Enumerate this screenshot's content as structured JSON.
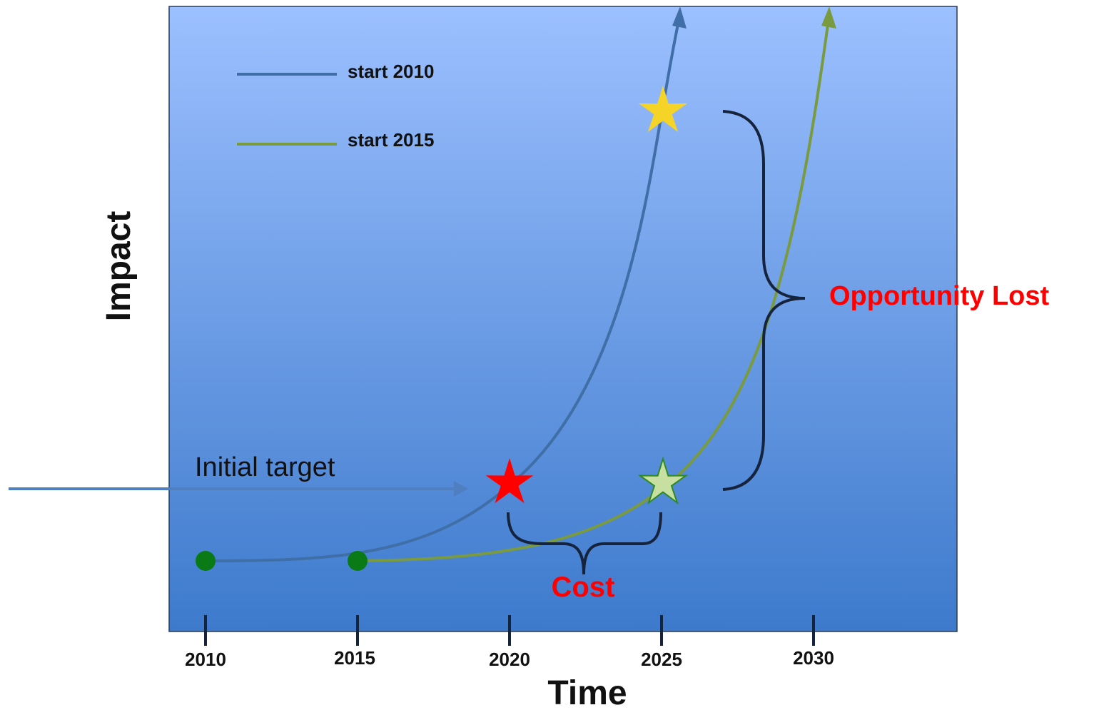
{
  "y_axis_label": "Impact",
  "x_axis_label": "Time",
  "ticks": [
    "2010",
    "2015",
    "2020",
    "2025",
    "2030"
  ],
  "legend": [
    {
      "label": "start 2010",
      "color": "#3f6fa6"
    },
    {
      "label": "start 2015",
      "color": "#7a9a3f"
    }
  ],
  "annotations": {
    "initial_target": "Initial target",
    "opportunity_lost": "Opportunity Lost",
    "cost": "Cost"
  },
  "colors": {
    "panel_top": "#9cc0ff",
    "panel_bottom": "#3d7acc",
    "red": "#ff0000",
    "start_dot": "#0a7a16",
    "gold_star": "#f5d327",
    "pale_green_star": "#c7dfa1",
    "bracket": "#16233d"
  }
}
